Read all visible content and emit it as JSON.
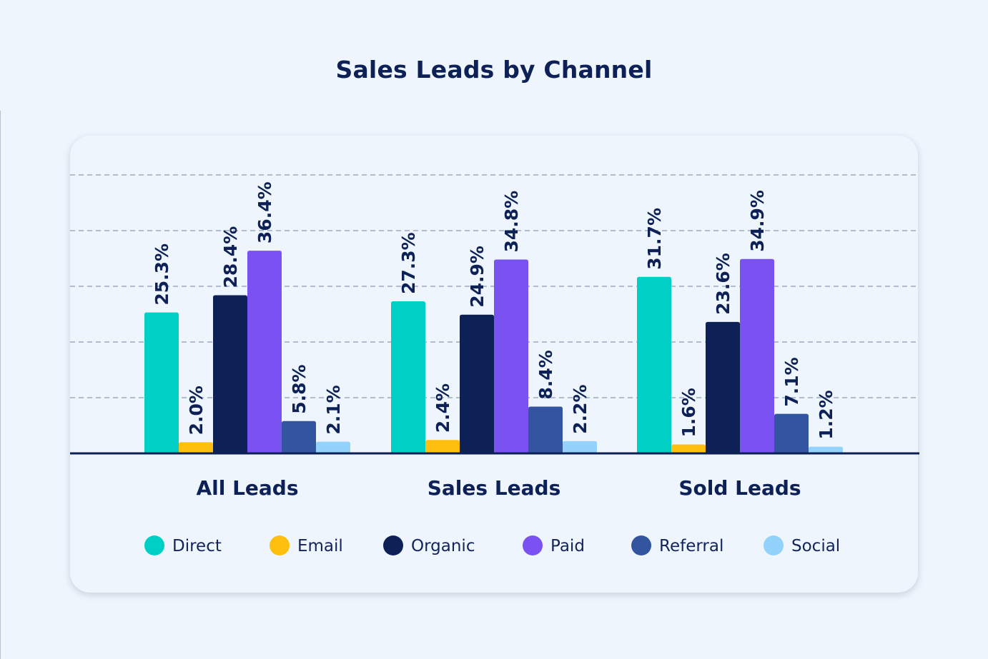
{
  "title": "Sales Leads by Channel",
  "chart_data": {
    "type": "bar",
    "title": "Sales Leads by Channel",
    "categories": [
      "All Leads",
      "Sales Leads",
      "Sold Leads"
    ],
    "series": [
      {
        "name": "Direct",
        "color": "#00cfc6",
        "values": [
          25.3,
          27.3,
          31.7
        ],
        "labels": [
          "25.3%",
          "27.3%",
          "31.7%"
        ]
      },
      {
        "name": "Email",
        "color": "#ffbf0f",
        "values": [
          2.0,
          2.4,
          1.6
        ],
        "labels": [
          "2.0%",
          "2.4%",
          "1.6%"
        ]
      },
      {
        "name": "Organic",
        "color": "#0d2157",
        "values": [
          28.4,
          24.9,
          23.6
        ],
        "labels": [
          "28.4%",
          "24.9%",
          "23.6%"
        ]
      },
      {
        "name": "Paid",
        "color": "#7b52f2",
        "values": [
          36.4,
          34.8,
          34.9
        ],
        "labels": [
          "36.4%",
          "34.8%",
          "34.9%"
        ]
      },
      {
        "name": "Referral",
        "color": "#33549f",
        "values": [
          5.8,
          8.4,
          7.1
        ],
        "labels": [
          "5.8%",
          "8.4%",
          "7.1%"
        ]
      },
      {
        "name": "Social",
        "color": "#93d3fb",
        "values": [
          2.1,
          2.2,
          1.2
        ],
        "labels": [
          "2.1%",
          "2.2%",
          "1.2%"
        ]
      }
    ],
    "ylim": [
      0,
      50
    ],
    "gridlines": [
      10,
      20,
      30,
      40,
      50
    ],
    "grid": true,
    "legend_position": "bottom",
    "xlabel": "",
    "ylabel": ""
  }
}
